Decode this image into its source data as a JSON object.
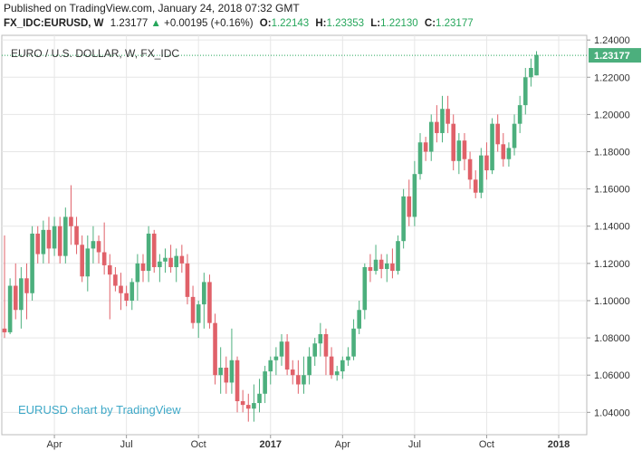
{
  "header": {
    "published": "Published on TradingView.com, January 24, 2018 07:32 GMT",
    "symbol": "FX_IDC:EURUSD, W",
    "last": "1.23177",
    "change": "+0.00195 (+0.16%)",
    "o_label": "O:",
    "o_value": "1.22143",
    "h_label": "H:",
    "h_value": "1.23353",
    "l_label": "L:",
    "l_value": "1.22130",
    "c_label": "C:",
    "c_value": "1.23177"
  },
  "panel_title": "EURO / U.S. DOLLAR, W, FX_IDC",
  "watermark": "EURUSD chart by TradingView",
  "colors": {
    "up": "#4caf7d",
    "down": "#e06169",
    "grid": "#e6e6e6",
    "last_line": "#26a65b",
    "price_tag": "#4caf7d"
  },
  "chart_data": {
    "type": "candlestick",
    "title": "EURO / U.S. DOLLAR, W, FX_IDC",
    "ylim": [
      1.028,
      1.243
    ],
    "y_ticks": [
      "1.24000",
      "1.22000",
      "1.20000",
      "1.18000",
      "1.16000",
      "1.14000",
      "1.12000",
      "1.10000",
      "1.08000",
      "1.06000",
      "1.04000"
    ],
    "y_tick_values": [
      1.24,
      1.22,
      1.2,
      1.18,
      1.16,
      1.14,
      1.12,
      1.1,
      1.08,
      1.06,
      1.04
    ],
    "x_ticks": [
      {
        "label": "Apr",
        "i": 9
      },
      {
        "label": "Jul",
        "i": 22
      },
      {
        "label": "Oct",
        "i": 35
      },
      {
        "label": "2017",
        "i": 48
      },
      {
        "label": "Apr",
        "i": 61
      },
      {
        "label": "Jul",
        "i": 74
      },
      {
        "label": "Oct",
        "i": 87
      },
      {
        "label": "2018",
        "i": 100
      }
    ],
    "last_price": 1.23177,
    "last_price_label": "1.23177",
    "candles": [
      [
        1.085,
        1.135,
        1.08,
        1.083
      ],
      [
        1.083,
        1.112,
        1.082,
        1.108
      ],
      [
        1.108,
        1.12,
        1.09,
        1.095
      ],
      [
        1.095,
        1.118,
        1.085,
        1.112
      ],
      [
        1.112,
        1.12,
        1.09,
        1.104
      ],
      [
        1.104,
        1.14,
        1.1,
        1.136
      ],
      [
        1.136,
        1.14,
        1.12,
        1.125
      ],
      [
        1.125,
        1.143,
        1.12,
        1.138
      ],
      [
        1.138,
        1.145,
        1.12,
        1.128
      ],
      [
        1.128,
        1.145,
        1.124,
        1.14
      ],
      [
        1.14,
        1.145,
        1.12,
        1.124
      ],
      [
        1.124,
        1.15,
        1.12,
        1.145
      ],
      [
        1.145,
        1.162,
        1.13,
        1.14
      ],
      [
        1.14,
        1.145,
        1.125,
        1.13
      ],
      [
        1.13,
        1.135,
        1.11,
        1.113
      ],
      [
        1.113,
        1.135,
        1.105,
        1.128
      ],
      [
        1.128,
        1.14,
        1.12,
        1.132
      ],
      [
        1.132,
        1.135,
        1.12,
        1.126
      ],
      [
        1.126,
        1.142,
        1.114,
        1.119
      ],
      [
        1.119,
        1.125,
        1.09,
        1.114
      ],
      [
        1.114,
        1.118,
        1.105,
        1.108
      ],
      [
        1.108,
        1.115,
        1.095,
        1.104
      ],
      [
        1.104,
        1.108,
        1.097,
        1.1
      ],
      [
        1.1,
        1.112,
        1.095,
        1.11
      ],
      [
        1.11,
        1.125,
        1.1,
        1.12
      ],
      [
        1.12,
        1.125,
        1.11,
        1.116
      ],
      [
        1.116,
        1.14,
        1.11,
        1.136
      ],
      [
        1.136,
        1.138,
        1.115,
        1.118
      ],
      [
        1.118,
        1.125,
        1.11,
        1.121
      ],
      [
        1.121,
        1.128,
        1.115,
        1.123
      ],
      [
        1.123,
        1.13,
        1.115,
        1.118
      ],
      [
        1.118,
        1.128,
        1.11,
        1.124
      ],
      [
        1.124,
        1.13,
        1.115,
        1.12
      ],
      [
        1.12,
        1.125,
        1.098,
        1.102
      ],
      [
        1.102,
        1.108,
        1.085,
        1.088
      ],
      [
        1.088,
        1.1,
        1.08,
        1.098
      ],
      [
        1.098,
        1.115,
        1.085,
        1.11
      ],
      [
        1.11,
        1.114,
        1.085,
        1.088
      ],
      [
        1.088,
        1.093,
        1.055,
        1.06
      ],
      [
        1.06,
        1.075,
        1.05,
        1.064
      ],
      [
        1.064,
        1.07,
        1.05,
        1.056
      ],
      [
        1.056,
        1.085,
        1.05,
        1.068
      ],
      [
        1.068,
        1.07,
        1.04,
        1.046
      ],
      [
        1.046,
        1.052,
        1.04,
        1.044
      ],
      [
        1.044,
        1.05,
        1.035,
        1.042
      ],
      [
        1.042,
        1.055,
        1.035,
        1.045
      ],
      [
        1.045,
        1.058,
        1.04,
        1.05
      ],
      [
        1.05,
        1.065,
        1.045,
        1.062
      ],
      [
        1.062,
        1.07,
        1.055,
        1.068
      ],
      [
        1.068,
        1.075,
        1.06,
        1.07
      ],
      [
        1.07,
        1.082,
        1.065,
        1.078
      ],
      [
        1.078,
        1.082,
        1.06,
        1.063
      ],
      [
        1.063,
        1.068,
        1.055,
        1.06
      ],
      [
        1.06,
        1.068,
        1.05,
        1.055
      ],
      [
        1.055,
        1.07,
        1.05,
        1.06
      ],
      [
        1.06,
        1.075,
        1.055,
        1.07
      ],
      [
        1.07,
        1.08,
        1.065,
        1.077
      ],
      [
        1.077,
        1.088,
        1.07,
        1.082
      ],
      [
        1.082,
        1.085,
        1.06,
        1.07
      ],
      [
        1.07,
        1.075,
        1.058,
        1.06
      ],
      [
        1.06,
        1.065,
        1.057,
        1.062
      ],
      [
        1.062,
        1.07,
        1.058,
        1.068
      ],
      [
        1.068,
        1.075,
        1.065,
        1.07
      ],
      [
        1.07,
        1.09,
        1.068,
        1.085
      ],
      [
        1.085,
        1.1,
        1.082,
        1.095
      ],
      [
        1.095,
        1.12,
        1.09,
        1.118
      ],
      [
        1.118,
        1.125,
        1.11,
        1.116
      ],
      [
        1.116,
        1.13,
        1.114,
        1.122
      ],
      [
        1.122,
        1.125,
        1.112,
        1.117
      ],
      [
        1.117,
        1.125,
        1.11,
        1.12
      ],
      [
        1.12,
        1.128,
        1.112,
        1.116
      ],
      [
        1.116,
        1.135,
        1.114,
        1.132
      ],
      [
        1.132,
        1.16,
        1.128,
        1.156
      ],
      [
        1.156,
        1.165,
        1.14,
        1.145
      ],
      [
        1.145,
        1.175,
        1.14,
        1.168
      ],
      [
        1.168,
        1.19,
        1.165,
        1.185
      ],
      [
        1.185,
        1.188,
        1.175,
        1.18
      ],
      [
        1.18,
        1.2,
        1.175,
        1.196
      ],
      [
        1.196,
        1.205,
        1.185,
        1.19
      ],
      [
        1.19,
        1.21,
        1.185,
        1.203
      ],
      [
        1.203,
        1.21,
        1.19,
        1.195
      ],
      [
        1.195,
        1.2,
        1.17,
        1.175
      ],
      [
        1.175,
        1.19,
        1.168,
        1.186
      ],
      [
        1.186,
        1.19,
        1.17,
        1.176
      ],
      [
        1.176,
        1.18,
        1.16,
        1.165
      ],
      [
        1.165,
        1.17,
        1.155,
        1.158
      ],
      [
        1.158,
        1.182,
        1.155,
        1.178
      ],
      [
        1.178,
        1.185,
        1.165,
        1.17
      ],
      [
        1.17,
        1.198,
        1.168,
        1.195
      ],
      [
        1.195,
        1.2,
        1.18,
        1.184
      ],
      [
        1.184,
        1.19,
        1.172,
        1.176
      ],
      [
        1.176,
        1.185,
        1.172,
        1.182
      ],
      [
        1.182,
        1.2,
        1.178,
        1.195
      ],
      [
        1.195,
        1.21,
        1.19,
        1.205
      ],
      [
        1.205,
        1.225,
        1.2,
        1.22
      ],
      [
        1.22,
        1.23,
        1.215,
        1.225
      ],
      [
        1.221,
        1.234,
        1.221,
        1.232
      ]
    ]
  }
}
